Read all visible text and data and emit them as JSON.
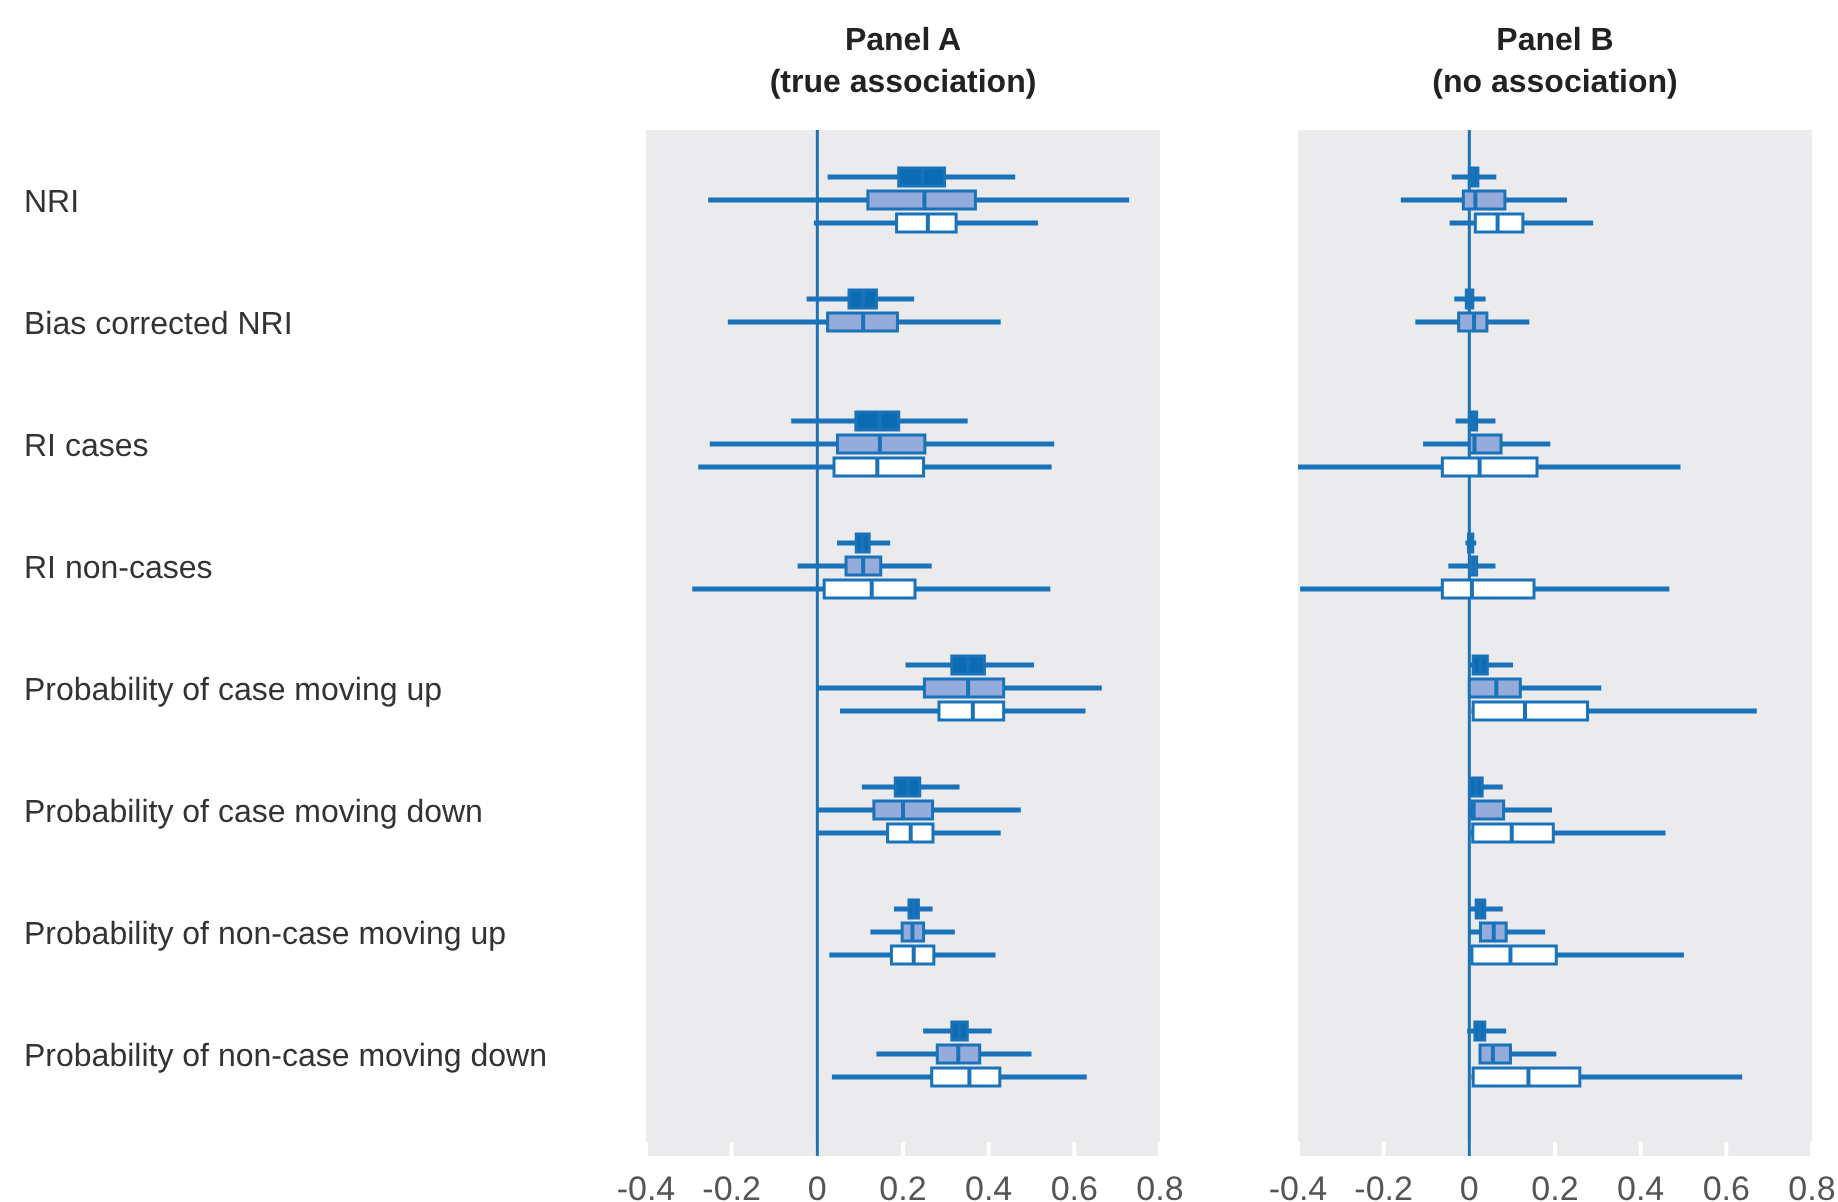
{
  "chart_data": [
    {
      "type": "box",
      "title": "Panel A\n(true association)",
      "orientation": "horizontal",
      "categories": [
        "NRI",
        "Bias corrected NRI",
        "RI cases",
        "RI non-cases",
        "Probability of case moving up",
        "Probability of case moving down",
        "Probability of non-case moving up",
        "Probability of non-case moving down"
      ],
      "xlim": [
        -0.4,
        0.8
      ],
      "xticks": [
        -0.4,
        -0.2,
        0,
        0.2,
        0.4,
        0.6,
        0.8
      ],
      "ref_lines": [
        {
          "axis": "x",
          "value": 0,
          "color": "#1a72b8"
        }
      ],
      "series": [
        {
          "color": "#0c6cb3",
          "boxes": [
            {
              "low": 0.024,
              "q1": 0.19,
              "median": 0.245,
              "q3": 0.297,
              "high": 0.462
            },
            {
              "low": -0.025,
              "q1": 0.074,
              "median": 0.107,
              "q3": 0.138,
              "high": 0.226
            },
            {
              "low": -0.061,
              "q1": 0.09,
              "median": 0.145,
              "q3": 0.19,
              "high": 0.351
            },
            {
              "low": 0.046,
              "q1": 0.091,
              "median": 0.105,
              "q3": 0.121,
              "high": 0.17
            },
            {
              "low": 0.206,
              "q1": 0.314,
              "median": 0.352,
              "q3": 0.39,
              "high": 0.506
            },
            {
              "low": 0.104,
              "q1": 0.182,
              "median": 0.211,
              "q3": 0.239,
              "high": 0.332
            },
            {
              "low": 0.179,
              "q1": 0.214,
              "median": 0.225,
              "q3": 0.236,
              "high": 0.269
            },
            {
              "low": 0.247,
              "q1": 0.314,
              "median": 0.332,
              "q3": 0.35,
              "high": 0.407
            }
          ]
        },
        {
          "color": "#95abdb",
          "boxes": [
            {
              "low": -0.255,
              "q1": 0.118,
              "median": 0.25,
              "q3": 0.369,
              "high": 0.728
            },
            {
              "low": -0.209,
              "q1": 0.024,
              "median": 0.107,
              "q3": 0.187,
              "high": 0.428
            },
            {
              "low": -0.251,
              "q1": 0.047,
              "median": 0.146,
              "q3": 0.251,
              "high": 0.553
            },
            {
              "low": -0.046,
              "q1": 0.067,
              "median": 0.107,
              "q3": 0.148,
              "high": 0.267
            },
            {
              "low": 0,
              "q1": 0.25,
              "median": 0.352,
              "q3": 0.435,
              "high": 0.664
            },
            {
              "low": 0,
              "q1": 0.132,
              "median": 0.2,
              "q3": 0.269,
              "high": 0.475
            },
            {
              "low": 0.124,
              "q1": 0.198,
              "median": 0.222,
              "q3": 0.248,
              "high": 0.321
            },
            {
              "low": 0.138,
              "q1": 0.28,
              "median": 0.329,
              "q3": 0.379,
              "high": 0.5
            }
          ]
        },
        {
          "color": "#ffffff",
          "boxes": [
            {
              "low": -0.008,
              "q1": 0.185,
              "median": 0.258,
              "q3": 0.324,
              "high": 0.515
            },
            null,
            {
              "low": -0.278,
              "q1": 0.039,
              "median": 0.14,
              "q3": 0.248,
              "high": 0.547
            },
            {
              "low": -0.292,
              "q1": 0.016,
              "median": 0.127,
              "q3": 0.228,
              "high": 0.544
            },
            {
              "low": 0.053,
              "q1": 0.284,
              "median": 0.363,
              "q3": 0.435,
              "high": 0.626
            },
            {
              "low": 0,
              "q1": 0.164,
              "median": 0.218,
              "q3": 0.27,
              "high": 0.428
            },
            {
              "low": 0.028,
              "q1": 0.173,
              "median": 0.225,
              "q3": 0.272,
              "high": 0.416
            },
            {
              "low": 0.034,
              "q1": 0.267,
              "median": 0.355,
              "q3": 0.426,
              "high": 0.629
            }
          ]
        }
      ]
    },
    {
      "type": "box",
      "title": "Panel B\n(no association)",
      "orientation": "horizontal",
      "tick_labels": "x",
      "categories": [
        null,
        null,
        null,
        null,
        null,
        null,
        null,
        null
      ],
      "xlim": [
        -0.4,
        0.8
      ],
      "xticks": [
        -0.4,
        -0.2,
        0,
        0.2,
        0.4,
        0.6,
        0.8
      ],
      "ref_lines": [
        {
          "axis": "x",
          "value": 0,
          "color": "#1a72b8"
        }
      ],
      "series": [
        {
          "color": "#0c6cb3",
          "boxes": [
            {
              "low": -0.041,
              "q1": 0,
              "median": 0.009,
              "q3": 0.02,
              "high": 0.063
            },
            {
              "low": -0.035,
              "q1": -0.007,
              "median": 0.001,
              "q3": 0.008,
              "high": 0.038
            },
            {
              "low": -0.032,
              "q1": 0,
              "median": 0.008,
              "q3": 0.017,
              "high": 0.061
            },
            {
              "low": -0.009,
              "q1": -0.002,
              "median": 0.003,
              "q3": 0.008,
              "high": 0.016
            },
            {
              "low": 0,
              "q1": 0.009,
              "median": 0.026,
              "q3": 0.042,
              "high": 0.102
            },
            {
              "low": 0,
              "q1": 0.001,
              "median": 0.016,
              "q3": 0.03,
              "high": 0.078
            },
            {
              "low": 0,
              "q1": 0.016,
              "median": 0.025,
              "q3": 0.036,
              "high": 0.078
            },
            {
              "low": -0.005,
              "q1": 0.013,
              "median": 0.024,
              "q3": 0.036,
              "high": 0.086
            }
          ]
        },
        {
          "color": "#95abdb",
          "boxes": [
            {
              "low": -0.16,
              "q1": -0.014,
              "median": 0.014,
              "q3": 0.083,
              "high": 0.228
            },
            {
              "low": -0.126,
              "q1": -0.025,
              "median": 0.011,
              "q3": 0.041,
              "high": 0.14
            },
            {
              "low": -0.108,
              "q1": 0,
              "median": 0.012,
              "q3": 0.074,
              "high": 0.189
            },
            {
              "low": -0.049,
              "q1": 0.001,
              "median": 0.009,
              "q3": 0.017,
              "high": 0.061
            },
            {
              "low": 0,
              "q1": 0,
              "median": 0.063,
              "q3": 0.119,
              "high": 0.308
            },
            {
              "low": 0,
              "q1": 0.006,
              "median": 0.01,
              "q3": 0.08,
              "high": 0.193
            },
            {
              "low": 0,
              "q1": 0.026,
              "median": 0.057,
              "q3": 0.086,
              "high": 0.177
            },
            {
              "low": 0.025,
              "q1": 0.025,
              "median": 0.055,
              "q3": 0.096,
              "high": 0.203
            }
          ]
        },
        {
          "color": "#ffffff",
          "boxes": [
            {
              "low": -0.046,
              "q1": 0.014,
              "median": 0.066,
              "q3": 0.125,
              "high": 0.289
            },
            null,
            {
              "low": -0.4,
              "q1": -0.063,
              "median": 0.024,
              "q3": 0.158,
              "high": 0.493
            },
            {
              "low": -0.395,
              "q1": -0.063,
              "median": 0.006,
              "q3": 0.151,
              "high": 0.467
            },
            {
              "low": 0.005,
              "q1": 0.009,
              "median": 0.13,
              "q3": 0.276,
              "high": 0.671
            },
            {
              "low": 0.003,
              "q1": 0.008,
              "median": 0.099,
              "q3": 0.196,
              "high": 0.458
            },
            {
              "low": 0.003,
              "q1": 0.006,
              "median": 0.096,
              "q3": 0.203,
              "high": 0.501
            },
            {
              "low": 0.005,
              "q1": 0.009,
              "median": 0.138,
              "q3": 0.258,
              "high": 0.637
            }
          ]
        }
      ]
    }
  ]
}
